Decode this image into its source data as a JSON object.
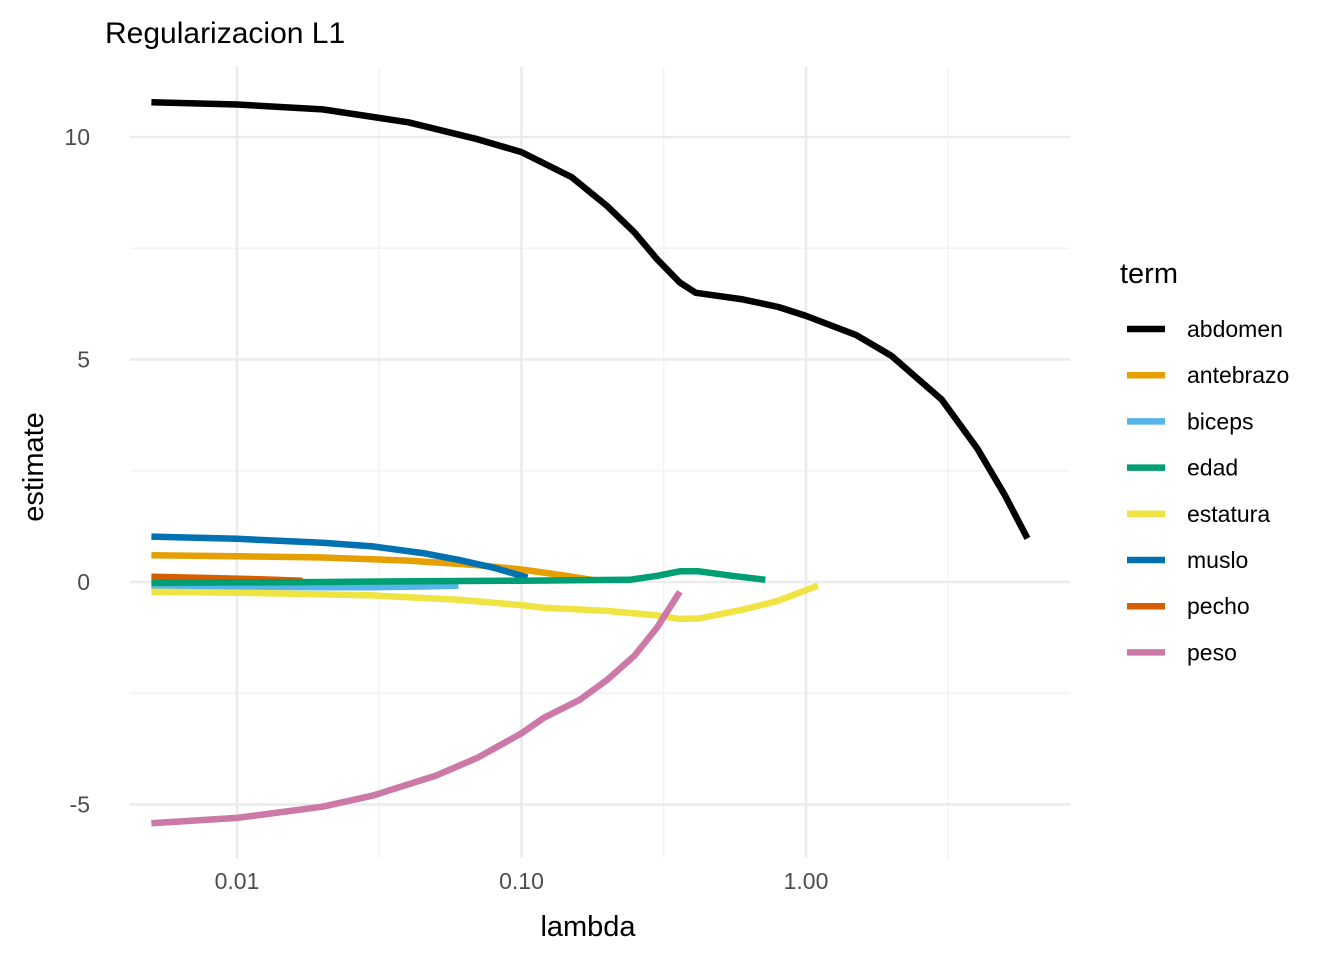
{
  "chart_data": {
    "type": "line",
    "title": "Regularizacion L1",
    "xlabel": "lambda",
    "ylabel": "estimate",
    "x_scale": "log10",
    "xlim": [
      0.0035,
      7.8
    ],
    "ylim": [
      -6.0,
      11.8
    ],
    "x_ticks": [
      {
        "value": 0.01,
        "label": "0.01"
      },
      {
        "value": 0.1,
        "label": "0.10"
      },
      {
        "value": 1.0,
        "label": "1.00"
      }
    ],
    "x_minor_ticks": [
      0.0316,
      0.316,
      3.16
    ],
    "y_ticks": [
      {
        "value": 10,
        "label": "10"
      },
      {
        "value": 5,
        "label": "5"
      },
      {
        "value": 0,
        "label": "0"
      },
      {
        "value": -5,
        "label": "-5"
      }
    ],
    "y_minor_ticks": [
      7.5,
      2.5,
      -2.5
    ],
    "grid": true,
    "legend": {
      "title": "term",
      "position": "right"
    },
    "series": [
      {
        "name": "abdomen",
        "color": "#000000",
        "x": [
          0.005,
          0.01,
          0.02,
          0.04,
          0.07,
          0.1,
          0.15,
          0.2,
          0.25,
          0.3,
          0.36,
          0.41,
          0.6,
          0.8,
          1.0,
          1.5,
          2.0,
          3.0,
          4.0,
          5.0,
          6.0
        ],
        "y": [
          10.78,
          10.73,
          10.62,
          10.33,
          9.95,
          9.66,
          9.1,
          8.45,
          7.85,
          7.25,
          6.73,
          6.5,
          6.35,
          6.18,
          5.98,
          5.55,
          5.08,
          4.1,
          3.0,
          1.95,
          0.98
        ]
      },
      {
        "name": "antebrazo",
        "color": "#E69F00",
        "x": [
          0.005,
          0.01,
          0.02,
          0.04,
          0.07,
          0.1,
          0.14,
          0.18
        ],
        "y": [
          0.6,
          0.58,
          0.55,
          0.48,
          0.38,
          0.28,
          0.15,
          0.04
        ]
      },
      {
        "name": "biceps",
        "color": "#56B4E9",
        "x": [
          0.005,
          0.01,
          0.02,
          0.03,
          0.045,
          0.06
        ],
        "y": [
          -0.08,
          -0.1,
          -0.12,
          -0.12,
          -0.1,
          -0.08
        ]
      },
      {
        "name": "edad",
        "color": "#009E73",
        "x": [
          0.005,
          0.01,
          0.02,
          0.05,
          0.1,
          0.15,
          0.24,
          0.3,
          0.36,
          0.42,
          0.55,
          0.72
        ],
        "y": [
          -0.02,
          -0.01,
          0.0,
          0.02,
          0.03,
          0.04,
          0.05,
          0.14,
          0.24,
          0.24,
          0.14,
          0.05
        ]
      },
      {
        "name": "estatura",
        "color": "#F0E442",
        "x": [
          0.005,
          0.01,
          0.03,
          0.06,
          0.1,
          0.12,
          0.2,
          0.3,
          0.36,
          0.42,
          0.6,
          0.8,
          1.1
        ],
        "y": [
          -0.22,
          -0.24,
          -0.3,
          -0.4,
          -0.52,
          -0.58,
          -0.65,
          -0.75,
          -0.83,
          -0.82,
          -0.62,
          -0.42,
          -0.08
        ]
      },
      {
        "name": "muslo",
        "color": "#0072B2",
        "x": [
          0.005,
          0.01,
          0.02,
          0.03,
          0.045,
          0.06,
          0.08,
          0.105
        ],
        "y": [
          1.02,
          0.97,
          0.88,
          0.8,
          0.65,
          0.5,
          0.32,
          0.1
        ]
      },
      {
        "name": "pecho",
        "color": "#D55E00",
        "x": [
          0.005,
          0.008,
          0.012,
          0.017
        ],
        "y": [
          0.12,
          0.09,
          0.06,
          0.03
        ]
      },
      {
        "name": "peso",
        "color": "#CC79A7",
        "x": [
          0.005,
          0.01,
          0.02,
          0.03,
          0.05,
          0.07,
          0.1,
          0.12,
          0.16,
          0.2,
          0.25,
          0.3,
          0.36
        ],
        "y": [
          -5.42,
          -5.3,
          -5.05,
          -4.8,
          -4.35,
          -3.95,
          -3.4,
          -3.05,
          -2.65,
          -2.2,
          -1.65,
          -1.02,
          -0.22
        ]
      }
    ]
  }
}
